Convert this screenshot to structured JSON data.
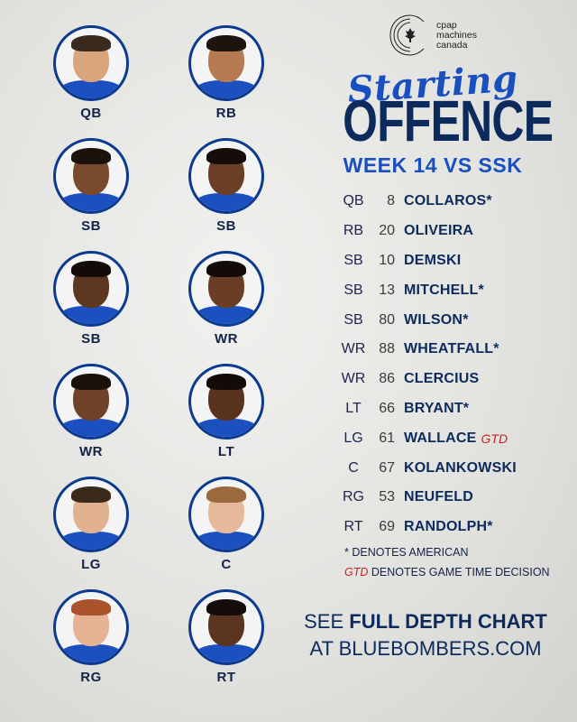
{
  "brand": {
    "lines": [
      "cpap",
      "machines",
      "canada"
    ]
  },
  "header": {
    "script_title": "Starting",
    "main_title": "OFFENCE",
    "subtitle": "WEEK 14 VS SSK"
  },
  "players": [
    {
      "pos": "QB",
      "skin": "#d9a57d",
      "hair": "#3a2a1e"
    },
    {
      "pos": "RB",
      "skin": "#b57a52",
      "hair": "#1d1410"
    },
    {
      "pos": "SB",
      "skin": "#7a4a2e",
      "hair": "#1a120d"
    },
    {
      "pos": "SB",
      "skin": "#6a3f26",
      "hair": "#140d09"
    },
    {
      "pos": "SB",
      "skin": "#5d3620",
      "hair": "#120b07"
    },
    {
      "pos": "WR",
      "skin": "#6a3e26",
      "hair": "#120b07"
    },
    {
      "pos": "WR",
      "skin": "#6e4128",
      "hair": "#1a110b"
    },
    {
      "pos": "LT",
      "skin": "#5a331f",
      "hair": "#120b07"
    },
    {
      "pos": "LG",
      "skin": "#e1b08e",
      "hair": "#3a2a1c"
    },
    {
      "pos": "C",
      "skin": "#e5b999",
      "hair": "#9a6a3c"
    },
    {
      "pos": "RG",
      "skin": "#e6b294",
      "hair": "#a9522b"
    },
    {
      "pos": "RT",
      "skin": "#5b3520",
      "hair": "#140d09"
    }
  ],
  "roster": [
    {
      "pos": "QB",
      "num": "8",
      "name": "COLLAROS*",
      "tag": ""
    },
    {
      "pos": "RB",
      "num": "20",
      "name": "OLIVEIRA",
      "tag": ""
    },
    {
      "pos": "SB",
      "num": "10",
      "name": "DEMSKI",
      "tag": ""
    },
    {
      "pos": "SB",
      "num": "13",
      "name": "MITCHELL*",
      "tag": ""
    },
    {
      "pos": "SB",
      "num": "80",
      "name": "WILSON*",
      "tag": ""
    },
    {
      "pos": "WR",
      "num": "88",
      "name": "WHEATFALL*",
      "tag": ""
    },
    {
      "pos": "WR",
      "num": "86",
      "name": "CLERCIUS",
      "tag": ""
    },
    {
      "pos": "LT",
      "num": "66",
      "name": "BRYANT*",
      "tag": ""
    },
    {
      "pos": "LG",
      "num": "61",
      "name": "WALLACE",
      "tag": "GTD"
    },
    {
      "pos": "C",
      "num": "67",
      "name": "KOLANKOWSKI",
      "tag": ""
    },
    {
      "pos": "RG",
      "num": "53",
      "name": "NEUFELD",
      "tag": ""
    },
    {
      "pos": "RT",
      "num": "69",
      "name": "RANDOLPH*",
      "tag": ""
    }
  ],
  "notes": {
    "american": "* DENOTES AMERICAN",
    "gtd_key": "GTD",
    "gtd_text": " DENOTES GAME TIME DECISION"
  },
  "cta": {
    "prefix": "SEE ",
    "bold": "FULL DEPTH CHART",
    "line2": "AT BLUEBOMBERS.COM"
  },
  "colors": {
    "navy": "#0d2a5c",
    "royal": "#1a4fbf",
    "gtd_red": "#d32020"
  }
}
